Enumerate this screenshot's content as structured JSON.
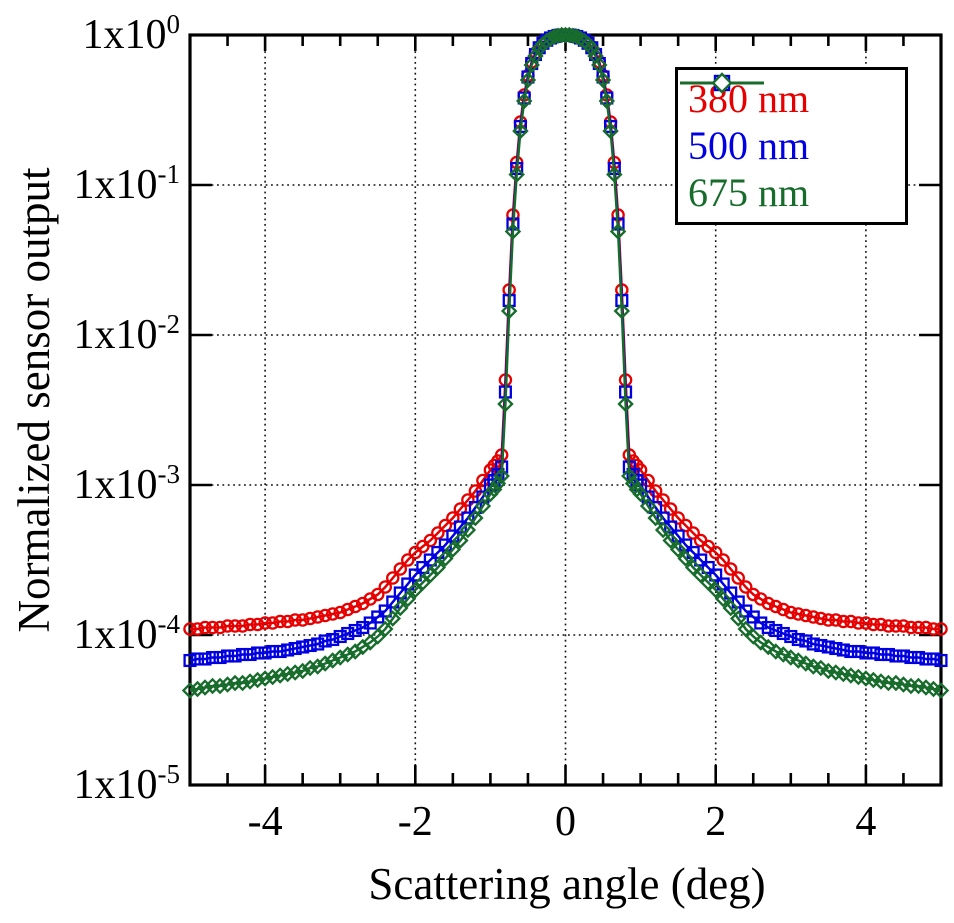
{
  "figure": {
    "background": "#ffffff"
  },
  "chart_data": {
    "type": "line",
    "title": "",
    "xlabel": "Scattering angle (deg)",
    "ylabel": "Normalized sensor output",
    "x_range": [
      -5,
      5
    ],
    "y_scale": "log",
    "y_log10_range": [
      -5,
      0
    ],
    "grid": {
      "on": true,
      "style": "dotted",
      "x_lines": [
        -4,
        -2,
        0,
        2,
        4
      ],
      "y_lines_log10": [
        -1,
        -2,
        -3,
        -4
      ]
    },
    "x_ticks": [
      {
        "value": -4,
        "label": "-4"
      },
      {
        "value": -2,
        "label": "-2"
      },
      {
        "value": 0,
        "label": "0"
      },
      {
        "value": 2,
        "label": "2"
      },
      {
        "value": 4,
        "label": "4"
      }
    ],
    "x_minor_tick_step": 0.5,
    "y_ticks": [
      {
        "log10": 0,
        "mantissa": "1x10",
        "exp": "0"
      },
      {
        "log10": -1,
        "mantissa": "1x10",
        "exp": "-1"
      },
      {
        "log10": -2,
        "mantissa": "1x10",
        "exp": "-2"
      },
      {
        "log10": -3,
        "mantissa": "1x10",
        "exp": "-3"
      },
      {
        "log10": -4,
        "mantissa": "1x10",
        "exp": "-4"
      },
      {
        "log10": -5,
        "mantissa": "1x10",
        "exp": "-5"
      }
    ],
    "legend": {
      "position": "top-right",
      "border": "#000000",
      "background": "#ffffff"
    },
    "series_note": "Curves are symmetric about 0 deg; x_half/log10y_half give one side, mirrored by renderer. y values are log10 of normalized sensor output.",
    "x_half": [
      0,
      0.05,
      0.1,
      0.15,
      0.2,
      0.25,
      0.3,
      0.35,
      0.4,
      0.45,
      0.5,
      0.55,
      0.6,
      0.65,
      0.7,
      0.75,
      0.8,
      0.85,
      0.9,
      0.95,
      1,
      1.1,
      1.2,
      1.3,
      1.4,
      1.5,
      1.6,
      1.7,
      1.8,
      1.9,
      2,
      2.1,
      2.2,
      2.3,
      2.4,
      2.5,
      2.6,
      2.7,
      2.8,
      2.9,
      3,
      3.1,
      3.2,
      3.3,
      3.4,
      3.5,
      3.6,
      3.7,
      3.8,
      3.9,
      4,
      4.1,
      4.2,
      4.3,
      4.4,
      4.5,
      4.6,
      4.7,
      4.8,
      4.9,
      5
    ],
    "series": [
      {
        "name": "380 nm",
        "color": "#e60000",
        "marker": "circle",
        "symmetric": true,
        "log10y_half": [
          0,
          0,
          -0.003,
          -0.01,
          -0.02,
          -0.03,
          -0.05,
          -0.08,
          -0.12,
          -0.18,
          -0.27,
          -0.4,
          -0.58,
          -0.85,
          -1.2,
          -1.7,
          -2.3,
          -2.8,
          -2.84,
          -2.87,
          -2.9,
          -2.97,
          -3.04,
          -3.1,
          -3.16,
          -3.22,
          -3.27,
          -3.32,
          -3.37,
          -3.41,
          -3.45,
          -3.5,
          -3.56,
          -3.62,
          -3.68,
          -3.73,
          -3.76,
          -3.79,
          -3.81,
          -3.83,
          -3.85,
          -3.86,
          -3.87,
          -3.88,
          -3.89,
          -3.9,
          -3.9,
          -3.91,
          -3.91,
          -3.92,
          -3.92,
          -3.93,
          -3.93,
          -3.94,
          -3.94,
          -3.94,
          -3.95,
          -3.95,
          -3.95,
          -3.96,
          -3.96
        ]
      },
      {
        "name": "500 nm",
        "color": "#0000e0",
        "marker": "square",
        "symmetric": true,
        "log10y_half": [
          0,
          0,
          -0.003,
          -0.01,
          -0.02,
          -0.035,
          -0.055,
          -0.085,
          -0.13,
          -0.19,
          -0.28,
          -0.42,
          -0.61,
          -0.89,
          -1.26,
          -1.77,
          -2.38,
          -2.88,
          -2.93,
          -2.97,
          -3,
          -3.08,
          -3.15,
          -3.22,
          -3.28,
          -3.34,
          -3.4,
          -3.45,
          -3.5,
          -3.55,
          -3.6,
          -3.66,
          -3.72,
          -3.78,
          -3.84,
          -3.88,
          -3.92,
          -3.95,
          -3.97,
          -3.99,
          -4.01,
          -4.03,
          -4.04,
          -4.06,
          -4.07,
          -4.08,
          -4.09,
          -4.1,
          -4.11,
          -4.11,
          -4.12,
          -4.12,
          -4.13,
          -4.13,
          -4.14,
          -4.14,
          -4.15,
          -4.15,
          -4.16,
          -4.16,
          -4.17
        ]
      },
      {
        "name": "675 nm",
        "color": "#176c2c",
        "marker": "diamond",
        "symmetric": true,
        "log10y_half": [
          0,
          0,
          -0.005,
          -0.01,
          -0.025,
          -0.04,
          -0.06,
          -0.09,
          -0.14,
          -0.2,
          -0.3,
          -0.44,
          -0.64,
          -0.93,
          -1.31,
          -1.84,
          -2.46,
          -2.94,
          -2.99,
          -3.03,
          -3.06,
          -3.14,
          -3.22,
          -3.3,
          -3.37,
          -3.43,
          -3.49,
          -3.55,
          -3.6,
          -3.65,
          -3.7,
          -3.76,
          -3.82,
          -3.89,
          -3.96,
          -4.01,
          -4.05,
          -4.08,
          -4.11,
          -4.13,
          -4.15,
          -4.17,
          -4.19,
          -4.21,
          -4.22,
          -4.24,
          -4.25,
          -4.26,
          -4.27,
          -4.28,
          -4.29,
          -4.3,
          -4.31,
          -4.32,
          -4.32,
          -4.33,
          -4.34,
          -4.34,
          -4.35,
          -4.36,
          -4.37
        ]
      }
    ]
  }
}
